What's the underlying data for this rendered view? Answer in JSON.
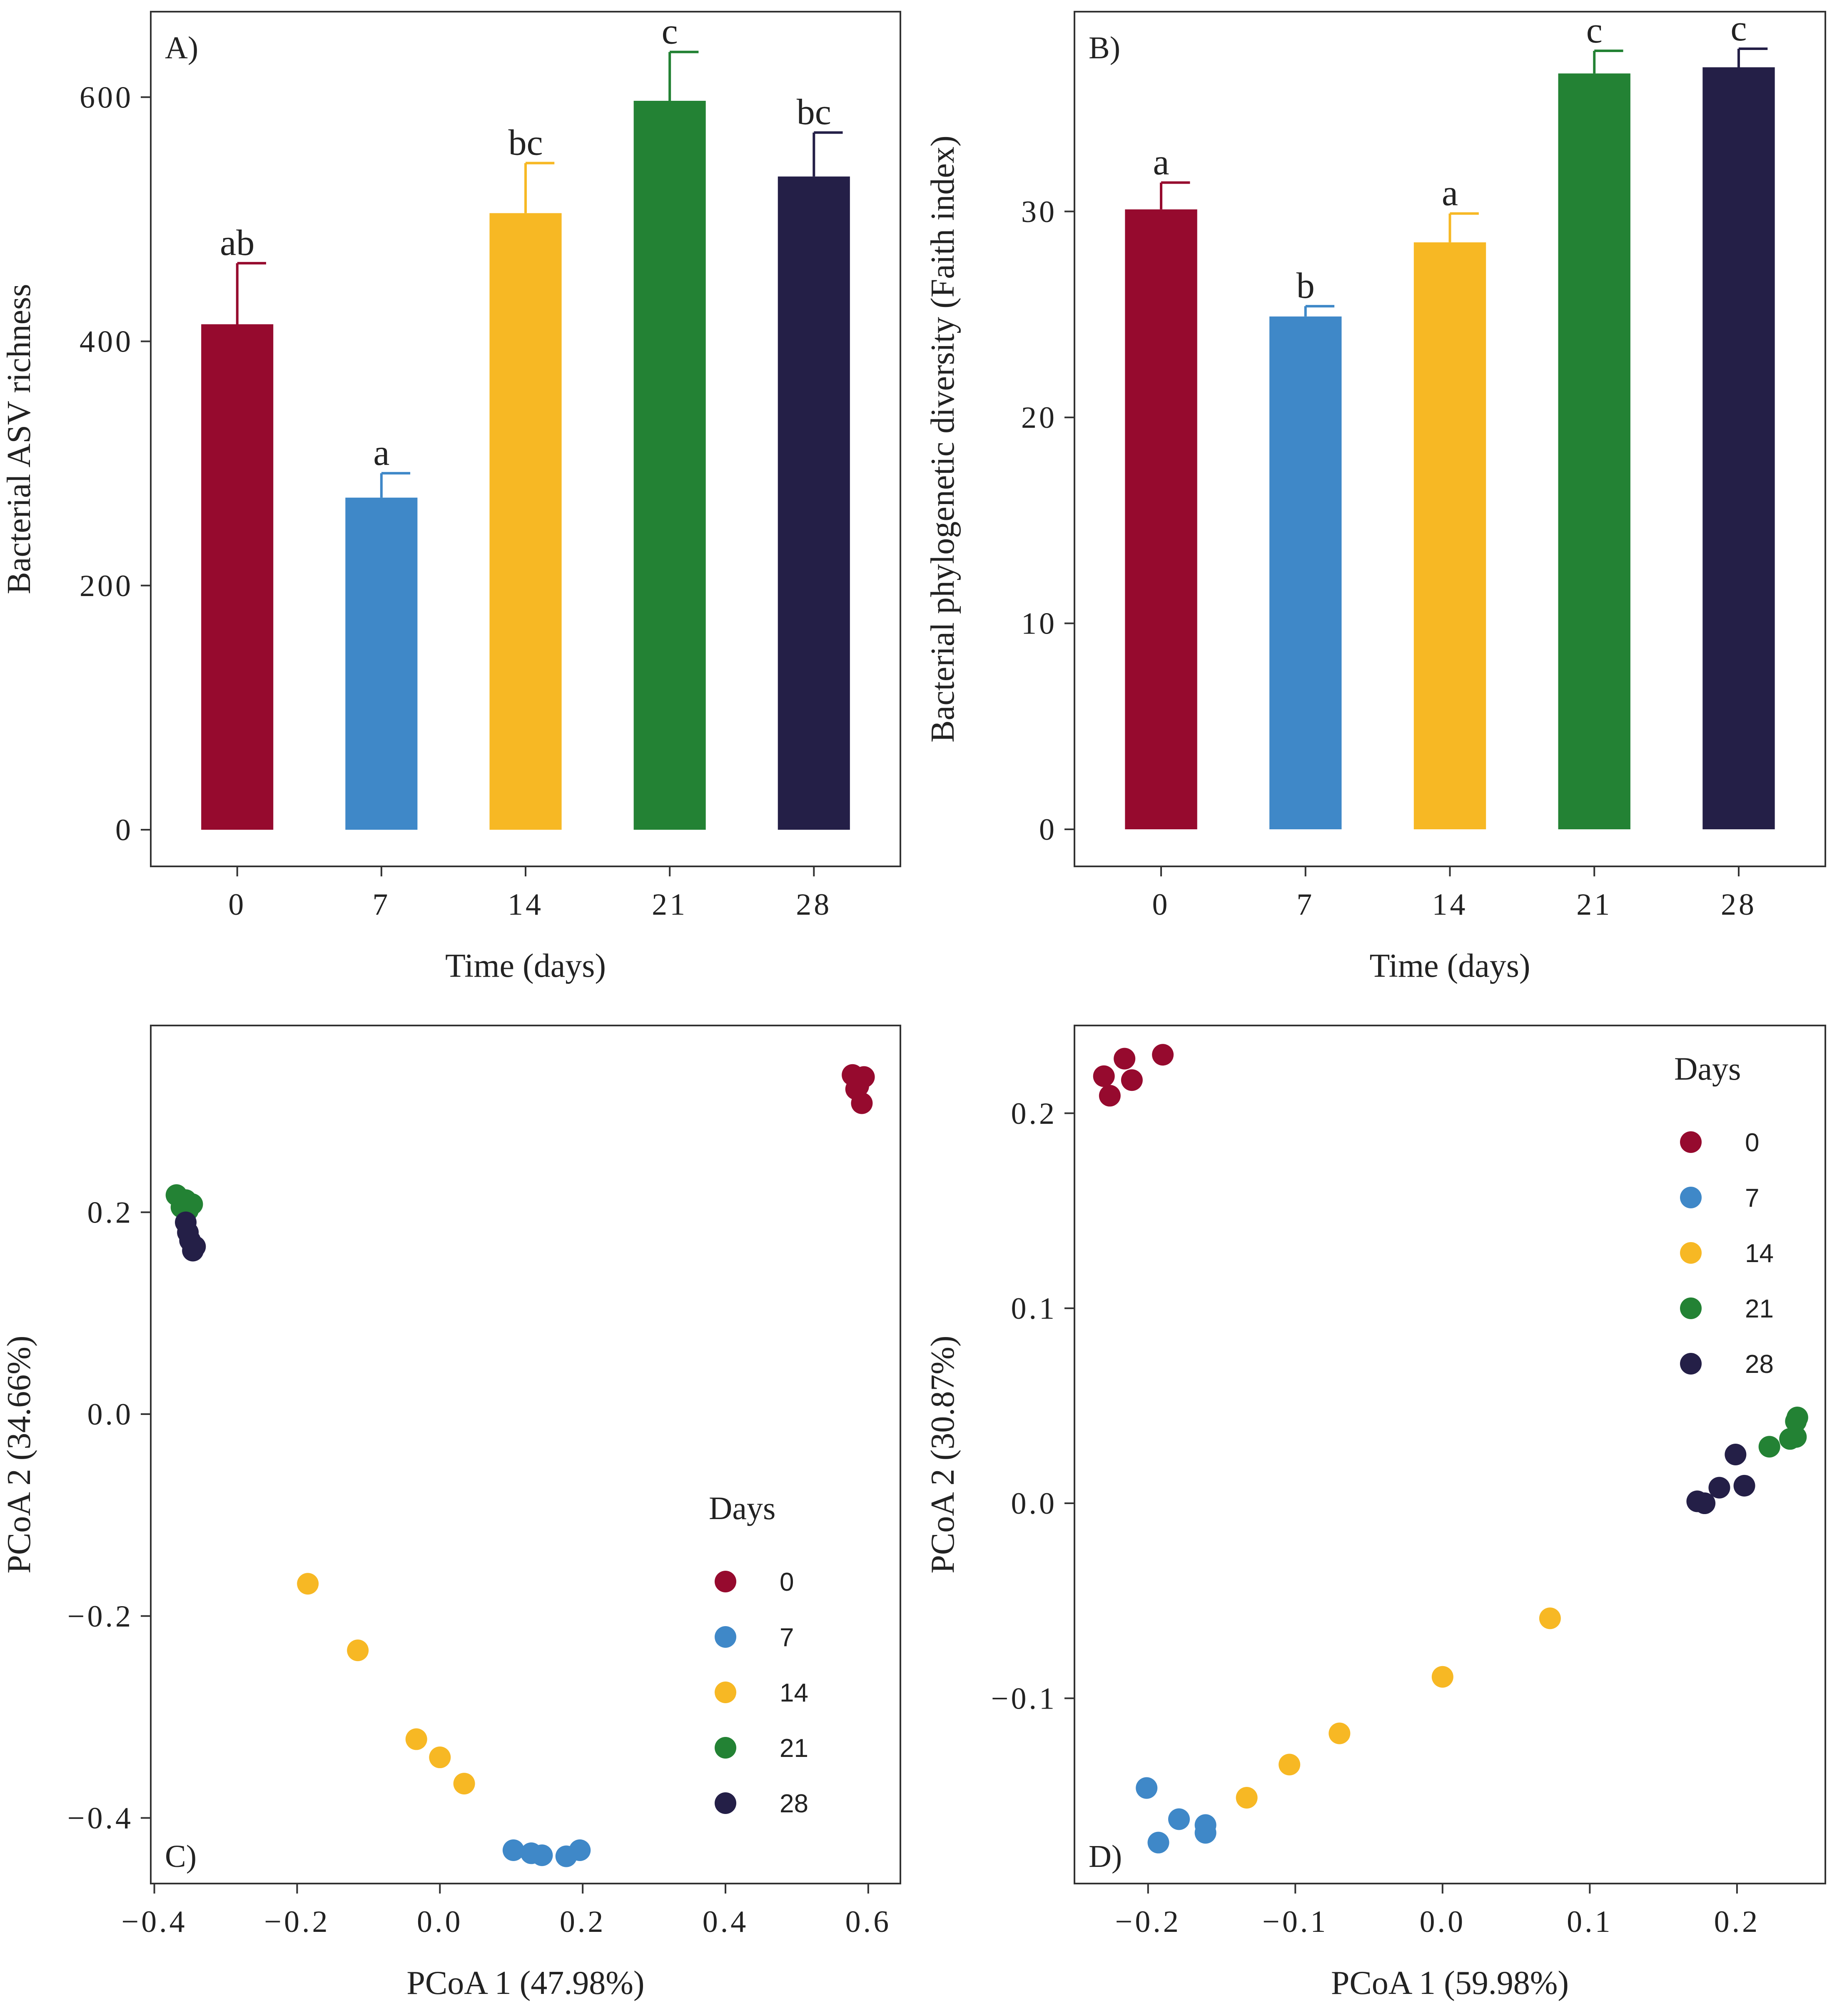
{
  "colors": {
    "0": "#960A2E",
    "7": "#3F88C8",
    "14": "#F7B824",
    "21": "#238234",
    "28": "#241F47",
    "axis": "#333333"
  },
  "chart_data": [
    {
      "id": "A",
      "type": "bar",
      "panel_label": "A)",
      "xlabel": "Time (days)",
      "ylabel": "Bacterial ASV richness",
      "categories": [
        "0",
        "7",
        "14",
        "21",
        "28"
      ],
      "values": [
        414,
        272,
        505,
        597,
        535
      ],
      "errors": [
        50,
        20,
        41,
        40,
        36
      ],
      "letters": [
        "ab",
        "a",
        "bc",
        "c",
        "bc"
      ],
      "ylim": [
        -30,
        670
      ],
      "yticks": [
        0,
        200,
        400,
        600
      ],
      "ytick_labels": [
        "0",
        "200",
        "400",
        "600"
      ]
    },
    {
      "id": "B",
      "type": "bar",
      "panel_label": "B)",
      "xlabel": "Time (days)",
      "ylabel": "Bacterial phylogenetic diversity (Faith index)",
      "categories": [
        "0",
        "7",
        "14",
        "21",
        "28"
      ],
      "values": [
        30.1,
        24.9,
        28.5,
        36.7,
        37.0
      ],
      "errors": [
        1.3,
        0.5,
        1.4,
        1.1,
        0.9
      ],
      "letters": [
        "a",
        "b",
        "a",
        "c",
        "c"
      ],
      "ylim": [
        -1.8,
        39.7
      ],
      "yticks": [
        0,
        10,
        20,
        30
      ],
      "ytick_labels": [
        "0",
        "10",
        "20",
        "30"
      ]
    },
    {
      "id": "C",
      "type": "scatter",
      "panel_label": "C)",
      "xlabel": "PCoA 1 (47.98%)",
      "ylabel": "PCoA 2 (34.66%)",
      "xlim": [
        -0.405,
        0.645
      ],
      "ylim": [
        -0.465,
        0.385
      ],
      "xticks": [
        -0.4,
        -0.2,
        0.0,
        0.2,
        0.4,
        0.6
      ],
      "xtick_labels": [
        "−0.4",
        "−0.2",
        "0.0",
        "0.2",
        "0.4",
        "0.6"
      ],
      "yticks": [
        -0.4,
        -0.2,
        0.0,
        0.2
      ],
      "ytick_labels": [
        "−0.4",
        "−0.2",
        "0.0",
        "0.2"
      ],
      "legend_title": "Days",
      "legend_position": "bottom-right",
      "series": [
        {
          "name": "0",
          "points": [
            [
              0.578,
              0.336
            ],
            [
              0.594,
              0.334
            ],
            [
              0.586,
              0.325
            ],
            [
              0.591,
              0.308
            ],
            [
              0.583,
              0.322
            ]
          ]
        },
        {
          "name": "7",
          "points": [
            [
              0.103,
              -0.432
            ],
            [
              0.128,
              -0.435
            ],
            [
              0.143,
              -0.437
            ],
            [
              0.177,
              -0.438
            ],
            [
              0.196,
              -0.432
            ]
          ]
        },
        {
          "name": "14",
          "points": [
            [
              -0.185,
              -0.168
            ],
            [
              -0.115,
              -0.234
            ],
            [
              -0.033,
              -0.322
            ],
            [
              0.0,
              -0.34
            ],
            [
              0.034,
              -0.366
            ]
          ]
        },
        {
          "name": "21",
          "points": [
            [
              -0.369,
              0.217
            ],
            [
              -0.356,
              0.212
            ],
            [
              -0.347,
              0.208
            ],
            [
              -0.362,
              0.205
            ],
            [
              -0.353,
              0.202
            ]
          ]
        },
        {
          "name": "28",
          "points": [
            [
              -0.356,
              0.19
            ],
            [
              -0.353,
              0.18
            ],
            [
              -0.35,
              0.172
            ],
            [
              -0.343,
              0.166
            ],
            [
              -0.346,
              0.162
            ]
          ]
        }
      ]
    },
    {
      "id": "D",
      "type": "scatter",
      "panel_label": "D)",
      "xlabel": "PCoA 1 (59.98%)",
      "ylabel": "PCoA 2 (30.87%)",
      "xlim": [
        -0.25,
        0.26
      ],
      "ylim": [
        -0.195,
        0.245
      ],
      "xticks": [
        -0.2,
        -0.1,
        0.0,
        0.1,
        0.2
      ],
      "xtick_labels": [
        "−0.2",
        "−0.1",
        "0.0",
        "0.1",
        "0.2"
      ],
      "yticks": [
        -0.1,
        0.0,
        0.1,
        0.2
      ],
      "ytick_labels": [
        "−0.1",
        "0.0",
        "0.1",
        "0.2"
      ],
      "legend_title": "Days",
      "legend_position": "top-right",
      "series": [
        {
          "name": "0",
          "points": [
            [
              -0.23,
              0.219
            ],
            [
              -0.216,
              0.228
            ],
            [
              -0.19,
              0.23
            ],
            [
              -0.211,
              0.217
            ],
            [
              -0.226,
              0.209
            ]
          ]
        },
        {
          "name": "7",
          "points": [
            [
              -0.201,
              -0.146
            ],
            [
              -0.179,
              -0.162
            ],
            [
              -0.161,
              -0.165
            ],
            [
              -0.161,
              -0.169
            ],
            [
              -0.193,
              -0.174
            ]
          ]
        },
        {
          "name": "14",
          "points": [
            [
              -0.133,
              -0.151
            ],
            [
              -0.104,
              -0.134
            ],
            [
              -0.07,
              -0.118
            ],
            [
              0.0,
              -0.089
            ],
            [
              0.073,
              -0.059
            ]
          ]
        },
        {
          "name": "21",
          "points": [
            [
              0.222,
              0.029
            ],
            [
              0.236,
              0.033
            ],
            [
              0.24,
              0.034
            ],
            [
              0.24,
              0.042
            ],
            [
              0.241,
              0.044
            ]
          ]
        },
        {
          "name": "28",
          "points": [
            [
              0.173,
              0.001
            ],
            [
              0.178,
              0.0
            ],
            [
              0.188,
              0.008
            ],
            [
              0.199,
              0.025
            ],
            [
              0.205,
              0.009
            ]
          ]
        }
      ]
    }
  ]
}
